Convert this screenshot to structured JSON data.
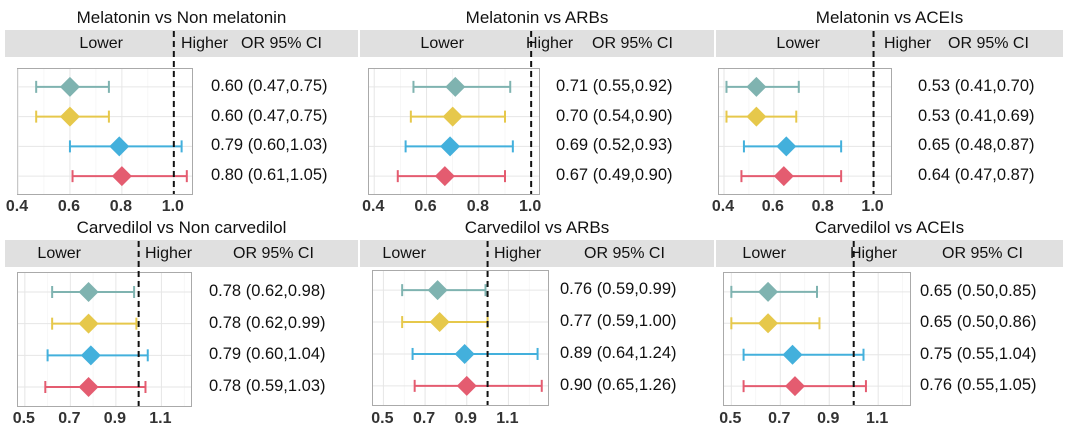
{
  "chart_data": [
    {
      "type": "forest",
      "title": "Melatonin vs Non melatonin",
      "left_label": "Lower",
      "right_label": "Higher",
      "ci_header": "OR 95% CI",
      "xlim": [
        0.4,
        1.07
      ],
      "xticks": [
        0.4,
        0.6,
        0.8,
        1.0
      ],
      "xtick_labels": [
        "0.4",
        "0.6",
        "0.8",
        "1.0"
      ],
      "reference_line": 1.0,
      "rows": [
        {
          "or": 0.6,
          "lower": 0.47,
          "upper": 0.75,
          "label": "0.60 (0.47,0.75)",
          "color": "#7fb3b0"
        },
        {
          "or": 0.6,
          "lower": 0.47,
          "upper": 0.75,
          "label": "0.60 (0.47,0.75)",
          "color": "#e6c84b"
        },
        {
          "or": 0.79,
          "lower": 0.6,
          "upper": 1.03,
          "label": "0.79 (0.60,1.03)",
          "color": "#43b0dc"
        },
        {
          "or": 0.8,
          "lower": 0.61,
          "upper": 1.05,
          "label": "0.80 (0.61,1.05)",
          "color": "#e45c70"
        }
      ]
    },
    {
      "type": "forest",
      "title": "Melatonin vs ARBs",
      "left_label": "Lower",
      "right_label": "Higher",
      "ci_header": "OR 95% CI",
      "xlim": [
        0.38,
        1.03
      ],
      "xticks": [
        0.4,
        0.6,
        0.8,
        1.0
      ],
      "xtick_labels": [
        "0.4",
        "0.6",
        "0.8",
        "1.0"
      ],
      "reference_line": 1.0,
      "rows": [
        {
          "or": 0.71,
          "lower": 0.55,
          "upper": 0.92,
          "label": "0.71 (0.55,0.92)",
          "color": "#7fb3b0"
        },
        {
          "or": 0.7,
          "lower": 0.54,
          "upper": 0.9,
          "label": "0.70 (0.54,0.90)",
          "color": "#e6c84b"
        },
        {
          "or": 0.69,
          "lower": 0.52,
          "upper": 0.93,
          "label": "0.69 (0.52,0.93)",
          "color": "#43b0dc"
        },
        {
          "or": 0.67,
          "lower": 0.49,
          "upper": 0.9,
          "label": "0.67 (0.49,0.90)",
          "color": "#e45c70"
        }
      ]
    },
    {
      "type": "forest",
      "title": "Melatonin vs ACEIs",
      "left_label": "Lower",
      "right_label": "Higher",
      "ci_header": "OR 95% CI",
      "xlim": [
        0.38,
        1.07
      ],
      "xticks": [
        0.4,
        0.6,
        0.8,
        1.0
      ],
      "xtick_labels": [
        "0.4",
        "0.6",
        "0.8",
        "1.0"
      ],
      "reference_line": 1.0,
      "rows": [
        {
          "or": 0.53,
          "lower": 0.41,
          "upper": 0.7,
          "label": "0.53 (0.41,0.70)",
          "color": "#7fb3b0"
        },
        {
          "or": 0.53,
          "lower": 0.41,
          "upper": 0.69,
          "label": "0.53 (0.41,0.69)",
          "color": "#e6c84b"
        },
        {
          "or": 0.65,
          "lower": 0.48,
          "upper": 0.87,
          "label": "0.65 (0.48,0.87)",
          "color": "#43b0dc"
        },
        {
          "or": 0.64,
          "lower": 0.47,
          "upper": 0.87,
          "label": "0.64 (0.47,0.87)",
          "color": "#e45c70"
        }
      ]
    },
    {
      "type": "forest",
      "title": "Carvedilol vs Non carvedilol",
      "left_label": "Lower",
      "right_label": "Higher",
      "ci_header": "OR 95% CI",
      "xlim": [
        0.47,
        1.23
      ],
      "xticks": [
        0.5,
        0.7,
        0.9,
        1.1
      ],
      "xtick_labels": [
        "0.5",
        "0.7",
        "0.9",
        "1.1"
      ],
      "reference_line": 1.0,
      "rows": [
        {
          "or": 0.78,
          "lower": 0.62,
          "upper": 0.98,
          "label": "0.78 (0.62,0.98)",
          "color": "#7fb3b0"
        },
        {
          "or": 0.78,
          "lower": 0.62,
          "upper": 0.99,
          "label": "0.78 (0.62,0.99)",
          "color": "#e6c84b"
        },
        {
          "or": 0.79,
          "lower": 0.6,
          "upper": 1.04,
          "label": "0.79 (0.60,1.04)",
          "color": "#43b0dc"
        },
        {
          "or": 0.78,
          "lower": 0.59,
          "upper": 1.03,
          "label": "0.78 (0.59,1.03)",
          "color": "#e45c70"
        }
      ]
    },
    {
      "type": "forest",
      "title": "Carvedilol vs ARBs",
      "left_label": "Lower",
      "right_label": "Higher",
      "ci_header": "OR 95% CI",
      "xlim": [
        0.45,
        1.29
      ],
      "xticks": [
        0.5,
        0.7,
        0.9,
        1.1
      ],
      "xtick_labels": [
        "0.5",
        "0.7",
        "0.9",
        "1.1"
      ],
      "reference_line": 1.0,
      "rows": [
        {
          "or": 0.76,
          "lower": 0.59,
          "upper": 0.99,
          "label": "0.76 (0.59,0.99)",
          "color": "#7fb3b0"
        },
        {
          "or": 0.77,
          "lower": 0.59,
          "upper": 1.0,
          "label": "0.77 (0.59,1.00)",
          "color": "#e6c84b"
        },
        {
          "or": 0.89,
          "lower": 0.64,
          "upper": 1.24,
          "label": "0.89 (0.64,1.24)",
          "color": "#43b0dc"
        },
        {
          "or": 0.9,
          "lower": 0.65,
          "upper": 1.26,
          "label": "0.90 (0.65,1.26)",
          "color": "#e45c70"
        }
      ]
    },
    {
      "type": "forest",
      "title": "Carvedilol vs ACEIs",
      "left_label": "Lower",
      "right_label": "Higher",
      "ci_header": "OR 95% CI",
      "xlim": [
        0.47,
        1.23
      ],
      "xticks": [
        0.5,
        0.7,
        0.9,
        1.1
      ],
      "xtick_labels": [
        "0.5",
        "0.7",
        "0.9",
        "1.1"
      ],
      "reference_line": 1.0,
      "rows": [
        {
          "or": 0.65,
          "lower": 0.5,
          "upper": 0.85,
          "label": "0.65 (0.50,0.85)",
          "color": "#7fb3b0"
        },
        {
          "or": 0.65,
          "lower": 0.5,
          "upper": 0.86,
          "label": "0.65 (0.50,0.86)",
          "color": "#e6c84b"
        },
        {
          "or": 0.75,
          "lower": 0.55,
          "upper": 1.04,
          "label": "0.75 (0.55,1.04)",
          "color": "#43b0dc"
        },
        {
          "or": 0.76,
          "lower": 0.55,
          "upper": 1.05,
          "label": "0.76 (0.55,1.05)",
          "color": "#e45c70"
        }
      ]
    }
  ]
}
